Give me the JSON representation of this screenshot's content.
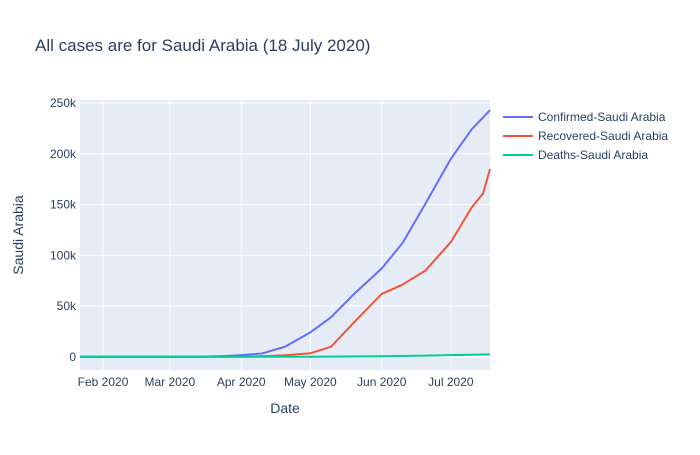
{
  "chart_data": {
    "type": "line",
    "title": "All cases are for Saudi Arabia (18 July 2020)",
    "xlabel": "Date",
    "ylabel": "Saudi Arabia",
    "x_range": [
      "2020-01-22",
      "2020-07-18"
    ],
    "ylim": [
      -13000,
      253000
    ],
    "x_ticks": [
      {
        "date": "2020-02-01",
        "label": "Feb 2020"
      },
      {
        "date": "2020-03-01",
        "label": "Mar 2020"
      },
      {
        "date": "2020-04-01",
        "label": "Apr 2020"
      },
      {
        "date": "2020-05-01",
        "label": "May 2020"
      },
      {
        "date": "2020-06-01",
        "label": "Jun 2020"
      },
      {
        "date": "2020-07-01",
        "label": "Jul 2020"
      }
    ],
    "y_ticks": [
      {
        "value": 0,
        "label": "0"
      },
      {
        "value": 50000,
        "label": "50k"
      },
      {
        "value": 100000,
        "label": "100k"
      },
      {
        "value": 150000,
        "label": "150k"
      },
      {
        "value": 200000,
        "label": "200k"
      },
      {
        "value": 250000,
        "label": "250k"
      }
    ],
    "grid": true,
    "legend_position": "right",
    "series": [
      {
        "name": "Confirmed-Saudi Arabia",
        "color": "#636efa",
        "points": [
          [
            "2020-01-22",
            0
          ],
          [
            "2020-03-01",
            0
          ],
          [
            "2020-03-15",
            100
          ],
          [
            "2020-03-25",
            800
          ],
          [
            "2020-04-01",
            1700
          ],
          [
            "2020-04-10",
            3300
          ],
          [
            "2020-04-20",
            10000
          ],
          [
            "2020-05-01",
            24000
          ],
          [
            "2020-05-10",
            39000
          ],
          [
            "2020-05-20",
            62000
          ],
          [
            "2020-06-01",
            87000
          ],
          [
            "2020-06-10",
            112000
          ],
          [
            "2020-06-20",
            151000
          ],
          [
            "2020-07-01",
            195000
          ],
          [
            "2020-07-10",
            224000
          ],
          [
            "2020-07-18",
            243000
          ]
        ]
      },
      {
        "name": "Recovered-Saudi Arabia",
        "color": "#ef553b",
        "points": [
          [
            "2020-01-22",
            0
          ],
          [
            "2020-04-01",
            0
          ],
          [
            "2020-04-10",
            500
          ],
          [
            "2020-04-20",
            1500
          ],
          [
            "2020-05-01",
            3500
          ],
          [
            "2020-05-10",
            10000
          ],
          [
            "2020-05-20",
            34000
          ],
          [
            "2020-06-01",
            62000
          ],
          [
            "2020-06-10",
            71000
          ],
          [
            "2020-06-20",
            85000
          ],
          [
            "2020-07-01",
            113000
          ],
          [
            "2020-07-10",
            147000
          ],
          [
            "2020-07-15",
            161000
          ],
          [
            "2020-07-18",
            185000
          ]
        ]
      },
      {
        "name": "Deaths-Saudi Arabia",
        "color": "#00cc96",
        "points": [
          [
            "2020-01-22",
            0
          ],
          [
            "2020-04-01",
            20
          ],
          [
            "2020-05-01",
            150
          ],
          [
            "2020-06-01",
            500
          ],
          [
            "2020-06-20",
            1200
          ],
          [
            "2020-07-01",
            1700
          ],
          [
            "2020-07-18",
            2400
          ]
        ]
      }
    ]
  }
}
